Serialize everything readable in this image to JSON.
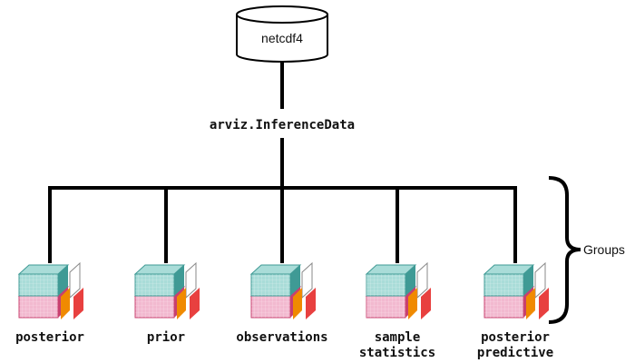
{
  "storage": {
    "label": "netcdf4"
  },
  "root": {
    "label": "arviz.InferenceData"
  },
  "brace_label": "Groups",
  "groups": [
    {
      "lines": [
        "posterior"
      ]
    },
    {
      "lines": [
        "prior"
      ]
    },
    {
      "lines": [
        "observations"
      ]
    },
    {
      "lines": [
        "sample",
        "statistics"
      ]
    },
    {
      "lines": [
        "posterior",
        "predictive"
      ]
    }
  ],
  "colors": {
    "teal": "#a9dcd8",
    "teal_dark": "#3f9a95",
    "pink": "#f2b9cf",
    "pink_dark": "#c8406f",
    "orange": "#f08a00",
    "red": "#e8403f",
    "line": "#000000"
  }
}
